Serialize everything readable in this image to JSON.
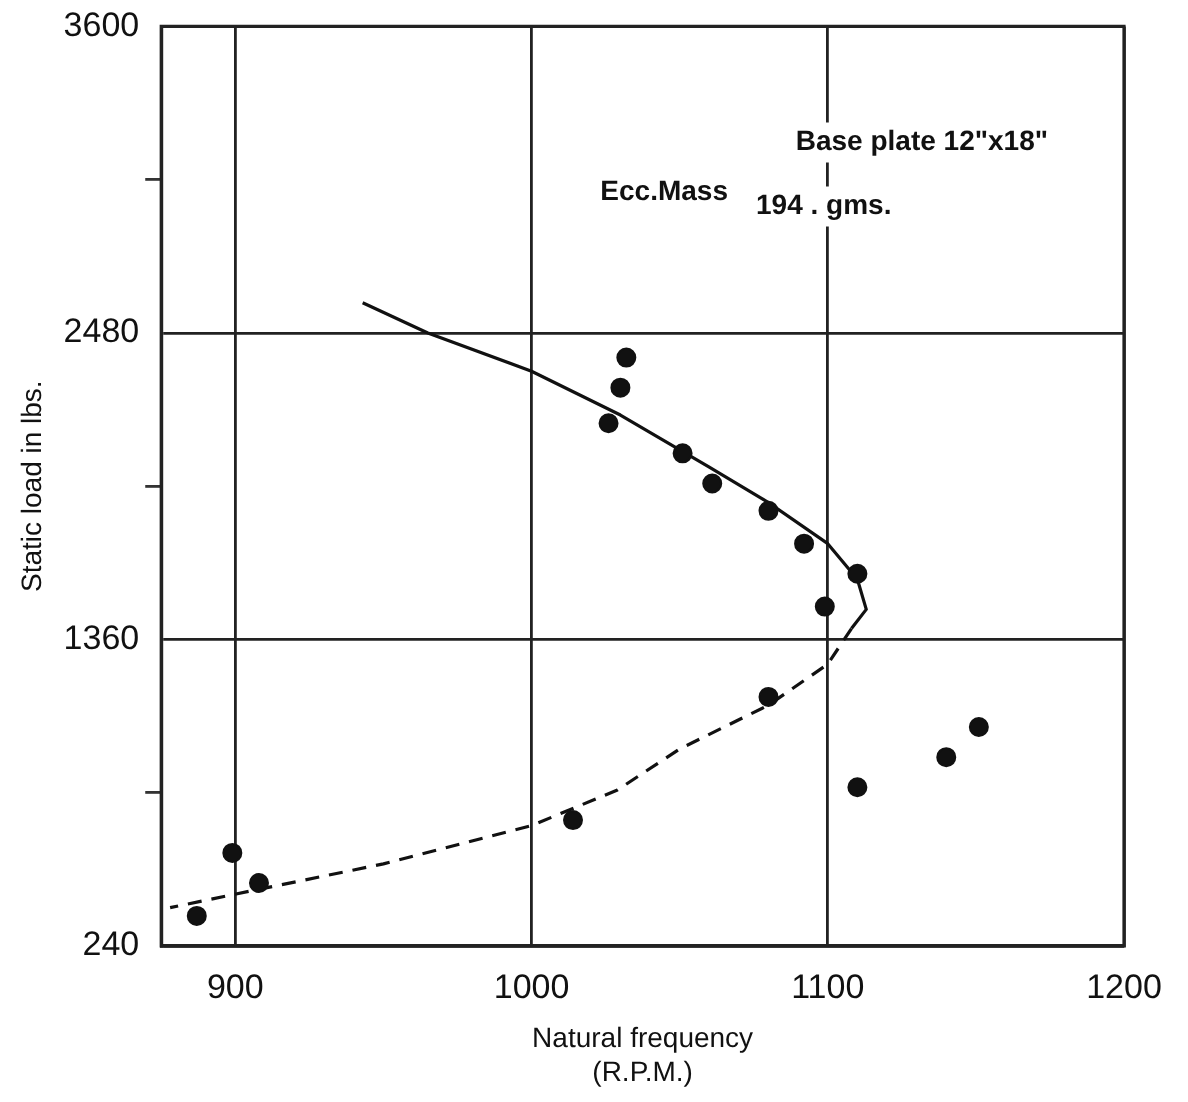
{
  "chart_data": {
    "type": "scatter",
    "xlabel": "Natural frequency\n(R.P.M.)",
    "ylabel": "Static load in lbs.",
    "annotations": [
      "Base plate 12\"x18\"",
      "Ecc.Mass",
      "194 . gms."
    ],
    "xlim": [
      875,
      1200
    ],
    "xticks": [
      900,
      1000,
      1100,
      1200
    ],
    "ylim": [
      240,
      3600
    ],
    "yticks": [
      240,
      {
        "value": 800,
        "label": null
      },
      1360,
      {
        "value": 1920,
        "label": null
      },
      2480,
      {
        "value": 3040,
        "label": null
      },
      3600
    ],
    "grid": true,
    "legend": false,
    "series": [
      {
        "color": "#111111",
        "marker": "circle",
        "x": [
          1032,
          1030,
          1026,
          1051,
          1061,
          1080,
          1092,
          1110,
          1099,
          1080,
          1151,
          1140,
          1110,
          1014,
          899,
          908,
          887
        ],
        "values": [
          2390,
          2280,
          2150,
          2040,
          1930,
          1830,
          1710,
          1600,
          1480,
          1150,
          1040,
          930,
          820,
          700,
          580,
          470,
          350
        ]
      },
      {
        "type": "line",
        "color": "#111111",
        "line_style": "solid",
        "marker": "none",
        "x": [
          943,
          965,
          1000,
          1030,
          1060,
          1080,
          1100,
          1110,
          1113,
          1108
        ],
        "values": [
          2590,
          2480,
          2340,
          2180,
          1990,
          1860,
          1710,
          1580,
          1470,
          1400
        ]
      },
      {
        "type": "line",
        "color": "#111111",
        "line_style": "dashed",
        "marker": "none",
        "x": [
          1108,
          1100,
          1080,
          1050,
          1029,
          1000,
          950,
          907,
          878
        ],
        "values": [
          1400,
          1270,
          1120,
          960,
          810,
          680,
          540,
          445,
          380
        ]
      }
    ]
  }
}
